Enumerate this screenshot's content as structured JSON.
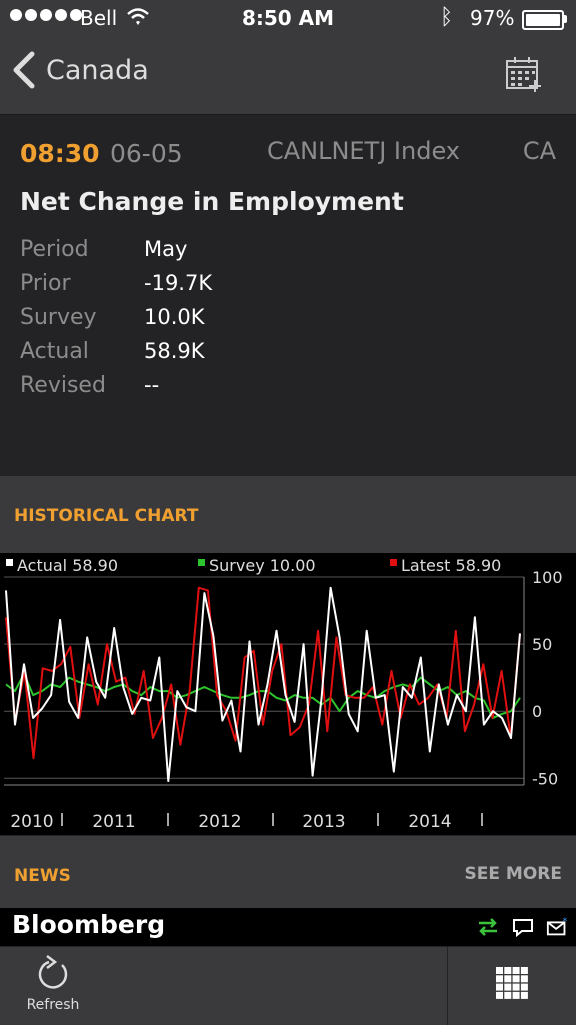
{
  "status": {
    "carrier": "Bell",
    "time": "8:50 AM",
    "battery": "97%"
  },
  "nav": {
    "back_label": "Canada"
  },
  "event": {
    "time": "08:30",
    "date": "06-05",
    "ticker": "CANLNETJ Index",
    "country": "CA",
    "title": "Net Change in Employment",
    "rows": [
      {
        "label": "Period",
        "value": "May"
      },
      {
        "label": "Prior",
        "value": "-19.7K"
      },
      {
        "label": "Survey",
        "value": "10.0K"
      },
      {
        "label": "Actual",
        "value": "58.9K"
      },
      {
        "label": "Revised",
        "value": "--"
      }
    ]
  },
  "sections": {
    "historical": "HISTORICAL CHART",
    "news": "NEWS",
    "see_more": "SEE MORE"
  },
  "chart_data": {
    "type": "line",
    "legend": [
      {
        "name": "Actual 58.90",
        "color": "#ffffff"
      },
      {
        "name": "Survey 10.00",
        "color": "#2ec42e"
      },
      {
        "name": "Latest 58.90",
        "color": "#e01010"
      }
    ],
    "y_ticks": [
      "100",
      "50",
      "0",
      "-50"
    ],
    "ylim": [
      -55,
      100
    ],
    "x_labels": [
      "2010",
      "2011",
      "2012",
      "2013",
      "2014"
    ],
    "grid": true,
    "series": [
      {
        "name": "Actual",
        "color": "#ffffff",
        "values": [
          90,
          -10,
          35,
          -5,
          2,
          12,
          68,
          7,
          -5,
          55,
          22,
          10,
          62,
          18,
          -2,
          10,
          8,
          40,
          -52,
          15,
          3,
          0,
          88,
          56,
          -7,
          8,
          -30,
          52,
          -10,
          20,
          60,
          12,
          -8,
          50,
          -48,
          10,
          92,
          55,
          -2,
          -15,
          60,
          10,
          12,
          -45,
          18,
          10,
          40,
          -30,
          20,
          -10,
          12,
          0,
          70,
          -10,
          0,
          -5,
          -20,
          58
        ]
      },
      {
        "name": "Survey",
        "color": "#2ec42e",
        "values": [
          20,
          15,
          28,
          12,
          15,
          20,
          18,
          25,
          22,
          20,
          18,
          15,
          18,
          20,
          15,
          12,
          18,
          15,
          15,
          10,
          12,
          15,
          18,
          15,
          12,
          10,
          10,
          12,
          15,
          15,
          10,
          8,
          12,
          10,
          10,
          5,
          10,
          0,
          10,
          15,
          12,
          10,
          15,
          18,
          20,
          18,
          25,
          20,
          15,
          18,
          12,
          15,
          10,
          8,
          -5,
          -2,
          0,
          10
        ]
      },
      {
        "name": "Latest",
        "color": "#e01010",
        "values": [
          70,
          -8,
          30,
          -35,
          32,
          30,
          35,
          48,
          -5,
          35,
          5,
          50,
          22,
          25,
          -2,
          30,
          -20,
          -5,
          20,
          -25,
          15,
          92,
          90,
          12,
          0,
          -22,
          40,
          45,
          -10,
          30,
          50,
          -18,
          -12,
          5,
          60,
          -15,
          55,
          12,
          10,
          10,
          18,
          -10,
          30,
          -5,
          20,
          5,
          10,
          20,
          -5,
          60,
          -15,
          5,
          35,
          -5,
          30,
          -20,
          58
        ]
      }
    ]
  },
  "brand": {
    "logo": "Bloomberg"
  },
  "toolbar": {
    "refresh": "Refresh"
  }
}
